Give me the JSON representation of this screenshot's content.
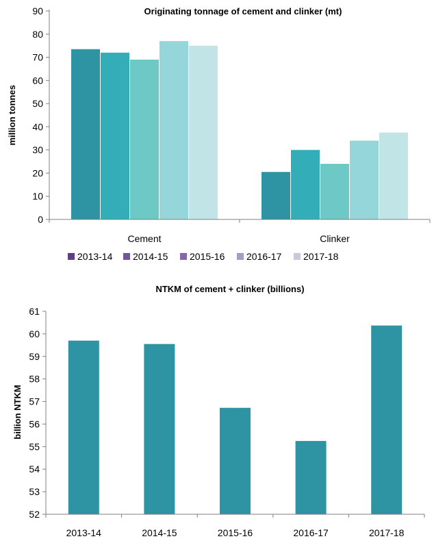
{
  "colors": {
    "bar_series": [
      "#2e94a3",
      "#33aeb8",
      "#6cc9c6",
      "#95d6db",
      "#c1e5e6"
    ],
    "legend_swatches": [
      "#5f3f84",
      "#7254a0",
      "#8565ae",
      "#a99ac7",
      "#cfc6de"
    ],
    "ntkm_bar": "#2e94a3"
  },
  "chart_data": [
    {
      "type": "bar",
      "title": "Originating tonnage of cement and clinker (mt)",
      "ylabel": "million tonnes",
      "xlabel": "",
      "categories": [
        "Cement",
        "Clinker"
      ],
      "series": [
        {
          "name": "2013-14",
          "values": [
            73.5,
            20.5
          ]
        },
        {
          "name": "2014-15",
          "values": [
            72.0,
            30.0
          ]
        },
        {
          "name": "2015-16",
          "values": [
            69.0,
            24.0
          ]
        },
        {
          "name": "2016-17",
          "values": [
            77.0,
            34.0
          ]
        },
        {
          "name": "2017-18",
          "values": [
            75.0,
            37.5
          ]
        }
      ],
      "ylim": [
        0,
        90
      ],
      "yticks": [
        0,
        10,
        20,
        30,
        40,
        50,
        60,
        70,
        80,
        90
      ],
      "legend": "bottom",
      "grid": false
    },
    {
      "type": "bar",
      "title": "NTKM of cement + clinker (billions)",
      "ylabel": "billion NTKM",
      "xlabel": "",
      "categories": [
        "2013-14",
        "2014-15",
        "2015-16",
        "2016-17",
        "2017-18"
      ],
      "values": [
        59.7,
        59.55,
        56.72,
        55.25,
        60.37
      ],
      "ylim": [
        52,
        61
      ],
      "yticks": [
        52,
        53,
        54,
        55,
        56,
        57,
        58,
        59,
        60,
        61
      ],
      "legend": "none",
      "grid": false
    }
  ]
}
